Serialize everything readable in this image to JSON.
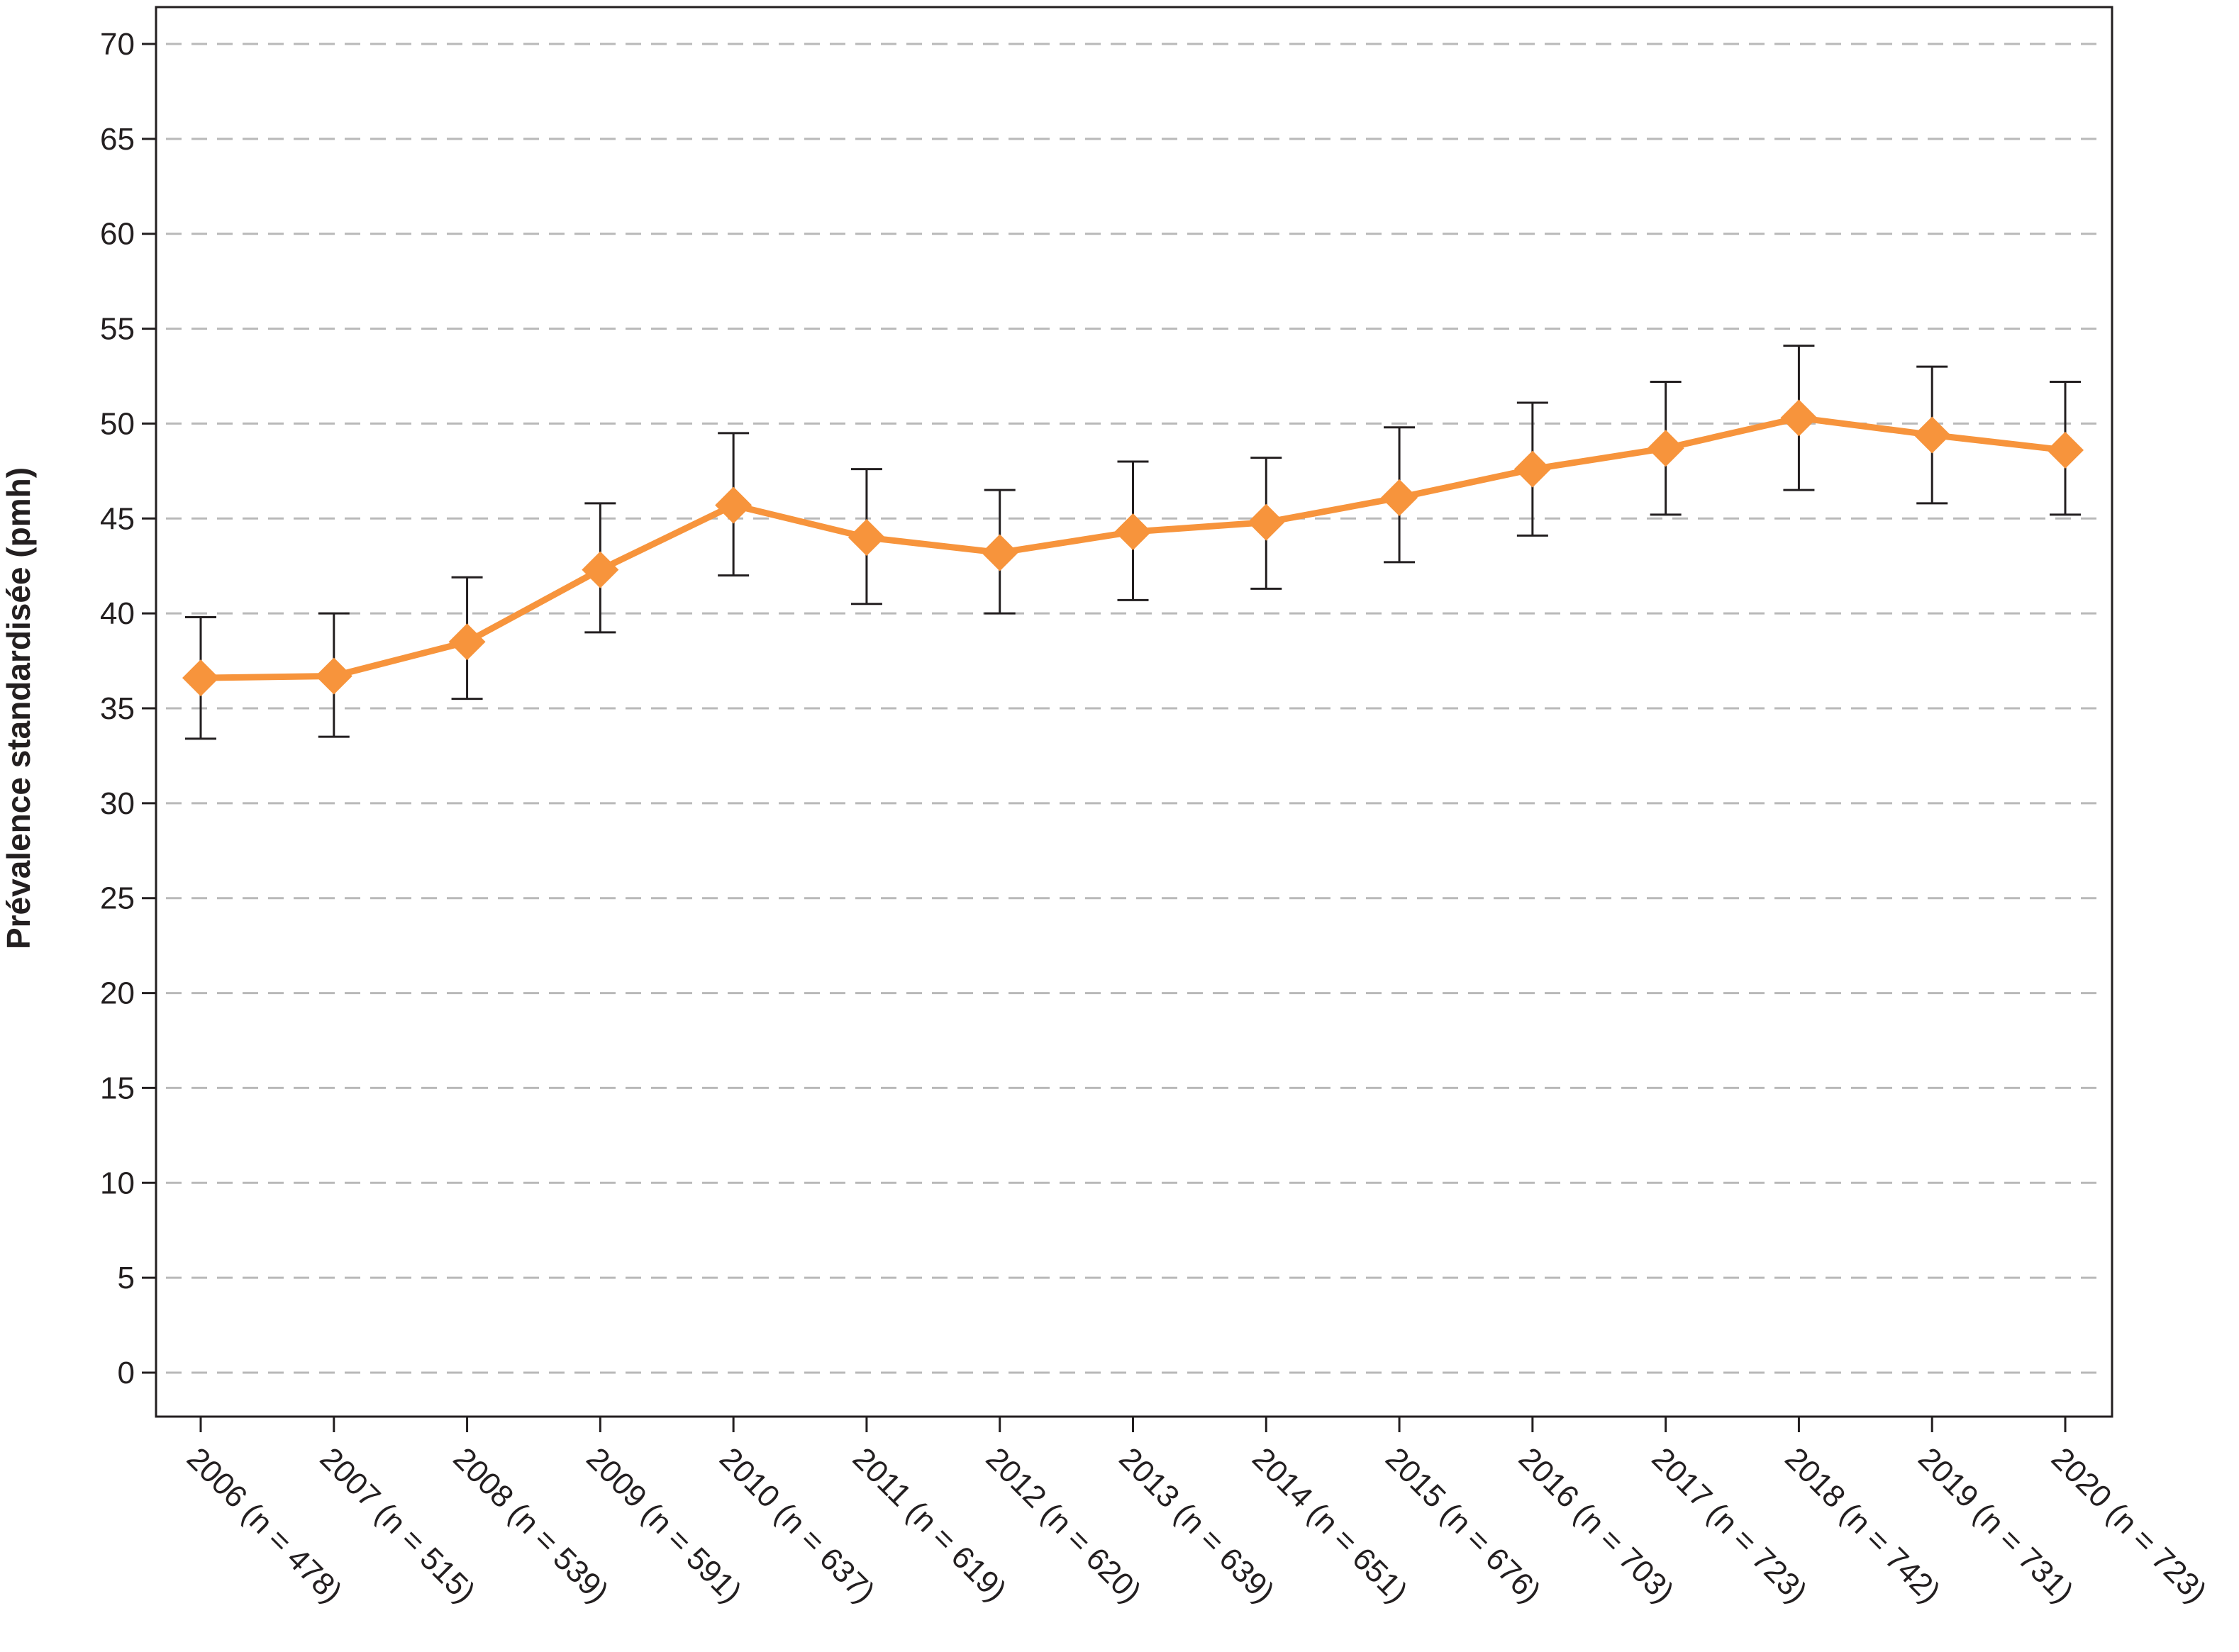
{
  "chart_data": {
    "type": "line",
    "title": "",
    "xlabel": "",
    "ylabel": "Prévalence standardisée (pmh)",
    "ylim": [
      0,
      70
    ],
    "yticks": [
      0,
      5,
      10,
      15,
      20,
      25,
      30,
      35,
      40,
      45,
      50,
      55,
      60,
      65,
      70
    ],
    "grid": "horizontal dashed",
    "categories": [
      "2006 (n = 478)",
      "2007 (n = 515)",
      "2008 (n = 539)",
      "2009 (n = 591)",
      "2010 (n = 637)",
      "2011 (n = 619)",
      "2012 (n = 620)",
      "2013 (n = 639)",
      "2014 (n = 651)",
      "2015 (n = 676)",
      "2016 (n = 703)",
      "2017 (n = 723)",
      "2018 (n = 742)",
      "2019 (n = 731)",
      "2020 (n = 723)"
    ],
    "series": [
      {
        "values": [
          36.6,
          36.7,
          38.5,
          42.3,
          45.7,
          44.0,
          43.2,
          44.3,
          44.8,
          46.1,
          47.6,
          48.7,
          50.3,
          49.4,
          48.6
        ],
        "ci_lower": [
          33.4,
          33.5,
          35.5,
          39.0,
          42.0,
          40.5,
          40.0,
          40.7,
          41.3,
          42.7,
          44.1,
          45.2,
          46.5,
          45.8,
          45.2
        ],
        "ci_upper": [
          39.8,
          40.0,
          41.9,
          45.8,
          49.5,
          47.6,
          46.5,
          48.0,
          48.2,
          49.8,
          51.1,
          52.2,
          54.1,
          53.0,
          52.2
        ],
        "color": "#f7943c",
        "marker": "diamond"
      }
    ],
    "errorbar_color": "#231f20"
  }
}
